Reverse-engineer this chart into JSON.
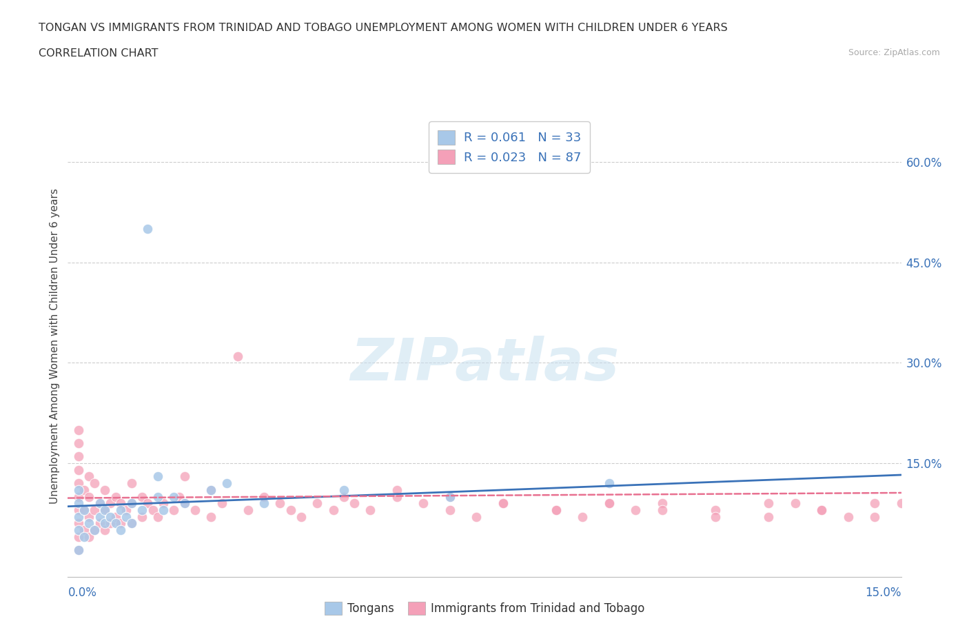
{
  "title_line1": "TONGAN VS IMMIGRANTS FROM TRINIDAD AND TOBAGO UNEMPLOYMENT AMONG WOMEN WITH CHILDREN UNDER 6 YEARS",
  "title_line2": "CORRELATION CHART",
  "source_text": "Source: ZipAtlas.com",
  "ylabel": "Unemployment Among Women with Children Under 6 years",
  "xlim": [
    -0.002,
    0.155
  ],
  "ylim": [
    -0.02,
    0.67
  ],
  "ytick_labels_right": [
    "15.0%",
    "30.0%",
    "45.0%",
    "60.0%"
  ],
  "ytick_vals_right": [
    0.15,
    0.3,
    0.45,
    0.6
  ],
  "color_tongan": "#a8c8e8",
  "color_tt": "#f4a0b8",
  "line_color_tongan": "#3a72b8",
  "line_color_tt": "#e87090",
  "watermark_text": "ZIPatlas",
  "legend_r1": "R = 0.061   N = 33",
  "legend_r2": "R = 0.023   N = 87",
  "legend_color": "#3a72b8",
  "background_color": "#ffffff",
  "grid_color": "#cccccc",
  "tongan_x": [
    0.0,
    0.0,
    0.0,
    0.0,
    0.0,
    0.001,
    0.001,
    0.002,
    0.003,
    0.004,
    0.004,
    0.005,
    0.005,
    0.006,
    0.007,
    0.008,
    0.008,
    0.009,
    0.01,
    0.01,
    0.012,
    0.013,
    0.015,
    0.015,
    0.016,
    0.018,
    0.02,
    0.025,
    0.028,
    0.035,
    0.05,
    0.07,
    0.1
  ],
  "tongan_y": [
    0.02,
    0.05,
    0.07,
    0.09,
    0.11,
    0.04,
    0.08,
    0.06,
    0.05,
    0.07,
    0.09,
    0.06,
    0.08,
    0.07,
    0.06,
    0.05,
    0.08,
    0.07,
    0.06,
    0.09,
    0.08,
    0.5,
    0.1,
    0.13,
    0.08,
    0.1,
    0.09,
    0.11,
    0.12,
    0.09,
    0.11,
    0.1,
    0.12
  ],
  "tt_x": [
    0.0,
    0.0,
    0.0,
    0.0,
    0.0,
    0.0,
    0.0,
    0.0,
    0.0,
    0.0,
    0.001,
    0.001,
    0.001,
    0.002,
    0.002,
    0.002,
    0.002,
    0.003,
    0.003,
    0.003,
    0.004,
    0.004,
    0.005,
    0.005,
    0.005,
    0.006,
    0.006,
    0.007,
    0.007,
    0.008,
    0.008,
    0.009,
    0.01,
    0.01,
    0.01,
    0.012,
    0.012,
    0.013,
    0.014,
    0.015,
    0.016,
    0.018,
    0.019,
    0.02,
    0.02,
    0.022,
    0.025,
    0.025,
    0.027,
    0.03,
    0.032,
    0.035,
    0.038,
    0.04,
    0.042,
    0.045,
    0.048,
    0.05,
    0.052,
    0.055,
    0.06,
    0.065,
    0.07,
    0.075,
    0.08,
    0.09,
    0.095,
    0.1,
    0.105,
    0.11,
    0.12,
    0.13,
    0.135,
    0.14,
    0.145,
    0.15,
    0.06,
    0.07,
    0.08,
    0.09,
    0.1,
    0.11,
    0.12,
    0.13,
    0.14,
    0.15,
    0.155
  ],
  "tt_y": [
    0.02,
    0.04,
    0.06,
    0.08,
    0.1,
    0.12,
    0.14,
    0.16,
    0.18,
    0.2,
    0.05,
    0.08,
    0.11,
    0.04,
    0.07,
    0.1,
    0.13,
    0.05,
    0.08,
    0.12,
    0.06,
    0.09,
    0.05,
    0.08,
    0.11,
    0.06,
    0.09,
    0.07,
    0.1,
    0.06,
    0.09,
    0.08,
    0.06,
    0.09,
    0.12,
    0.07,
    0.1,
    0.09,
    0.08,
    0.07,
    0.09,
    0.08,
    0.1,
    0.09,
    0.13,
    0.08,
    0.07,
    0.11,
    0.09,
    0.31,
    0.08,
    0.1,
    0.09,
    0.08,
    0.07,
    0.09,
    0.08,
    0.1,
    0.09,
    0.08,
    0.1,
    0.09,
    0.08,
    0.07,
    0.09,
    0.08,
    0.07,
    0.09,
    0.08,
    0.09,
    0.08,
    0.07,
    0.09,
    0.08,
    0.07,
    0.09,
    0.11,
    0.1,
    0.09,
    0.08,
    0.09,
    0.08,
    0.07,
    0.09,
    0.08,
    0.07,
    0.09
  ]
}
